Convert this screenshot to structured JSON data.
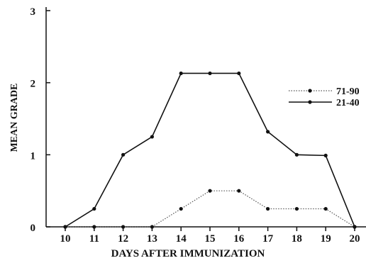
{
  "chart_data": {
    "type": "line",
    "xlabel": "DAYS AFTER IMMUNIZATION",
    "ylabel": "MEAN GRADE",
    "x": [
      10,
      11,
      12,
      13,
      14,
      15,
      16,
      17,
      18,
      19,
      20
    ],
    "xlim": [
      10,
      20
    ],
    "ylim": [
      0,
      3
    ],
    "yticks": [
      0,
      1,
      2,
      3
    ],
    "legend_position": "right",
    "series": [
      {
        "name": "71-90",
        "style": "dotted",
        "color": "#555555",
        "values": [
          0,
          0,
          0,
          0,
          0.25,
          0.5,
          0.5,
          0.25,
          0.25,
          0.25,
          0
        ]
      },
      {
        "name": "21-40",
        "style": "solid",
        "color": "#111111",
        "values": [
          0,
          0.25,
          1.0,
          1.25,
          2.13,
          2.13,
          2.13,
          1.32,
          1.0,
          0.99,
          0
        ]
      }
    ]
  }
}
